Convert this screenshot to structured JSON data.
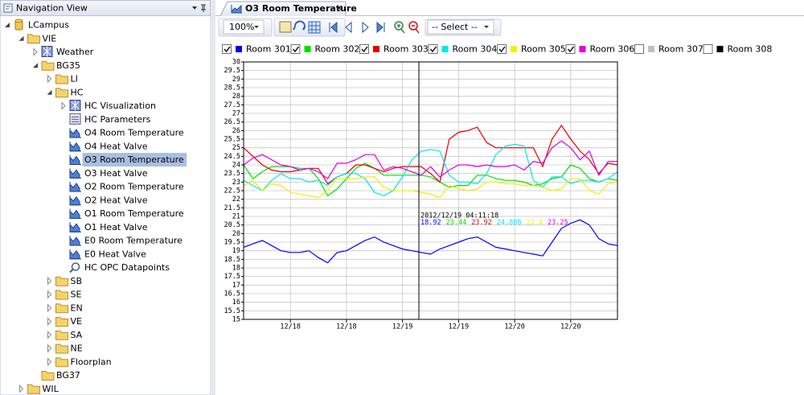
{
  "nav": {
    "title": "Navigation View",
    "nodes": [
      {
        "label": "LCampus",
        "depth": 0,
        "expander": "expanded",
        "icon": "database"
      },
      {
        "label": "VIE",
        "depth": 1,
        "expander": "expanded",
        "icon": "folder"
      },
      {
        "label": "Weather",
        "depth": 2,
        "expander": "collapsed",
        "icon": "visualization"
      },
      {
        "label": "BG35",
        "depth": 2,
        "expander": "expanded",
        "icon": "folder"
      },
      {
        "label": "LI",
        "depth": 3,
        "expander": "collapsed",
        "icon": "folder"
      },
      {
        "label": "HC",
        "depth": 3,
        "expander": "expanded",
        "icon": "folder"
      },
      {
        "label": "HC Visualization",
        "depth": 4,
        "expander": "collapsed",
        "icon": "visualization"
      },
      {
        "label": "HC Parameters",
        "depth": 4,
        "expander": "none",
        "icon": "parameters"
      },
      {
        "label": "O4 Room Temperature",
        "depth": 4,
        "expander": "none",
        "icon": "trend"
      },
      {
        "label": "O4 Heat Valve",
        "depth": 4,
        "expander": "none",
        "icon": "trend"
      },
      {
        "label": "O3 Room Temperature",
        "depth": 4,
        "expander": "none",
        "icon": "trend",
        "selected": true
      },
      {
        "label": "O3 Heat Valve",
        "depth": 4,
        "expander": "none",
        "icon": "trend"
      },
      {
        "label": "O2 Room Temperature",
        "depth": 4,
        "expander": "none",
        "icon": "trend"
      },
      {
        "label": "O2 Heat Valve",
        "depth": 4,
        "expander": "none",
        "icon": "trend"
      },
      {
        "label": "O1 Room Temperature",
        "depth": 4,
        "expander": "none",
        "icon": "trend"
      },
      {
        "label": "O1 Heat Valve",
        "depth": 4,
        "expander": "none",
        "icon": "trend"
      },
      {
        "label": "E0 Room Temperature",
        "depth": 4,
        "expander": "none",
        "icon": "trend"
      },
      {
        "label": "E0 Heat Valve",
        "depth": 4,
        "expander": "none",
        "icon": "trend"
      },
      {
        "label": "HC OPC Datapoints",
        "depth": 4,
        "expander": "none",
        "icon": "search"
      },
      {
        "label": "SB",
        "depth": 3,
        "expander": "collapsed",
        "icon": "folder"
      },
      {
        "label": "SE",
        "depth": 3,
        "expander": "collapsed",
        "icon": "folder"
      },
      {
        "label": "EN",
        "depth": 3,
        "expander": "collapsed",
        "icon": "folder"
      },
      {
        "label": "VE",
        "depth": 3,
        "expander": "collapsed",
        "icon": "folder"
      },
      {
        "label": "SA",
        "depth": 3,
        "expander": "collapsed",
        "icon": "folder"
      },
      {
        "label": "NE",
        "depth": 3,
        "expander": "collapsed",
        "icon": "folder"
      },
      {
        "label": "Floorplan",
        "depth": 3,
        "expander": "collapsed",
        "icon": "folder"
      },
      {
        "label": "BG37",
        "depth": 2,
        "expander": "none",
        "icon": "folder"
      },
      {
        "label": "WIL",
        "depth": 1,
        "expander": "collapsed",
        "icon": "folder"
      }
    ]
  },
  "tab": {
    "title": "O3 Room Temperature"
  },
  "toolbar": {
    "zoom": "100%",
    "select": "-- Select --"
  },
  "chart_data": {
    "type": "line",
    "categories": [
      null,
      null,
      null,
      null,
      null,
      "12/18",
      null,
      null,
      null,
      null,
      null,
      "12/18",
      null,
      null,
      null,
      null,
      null,
      "12/19",
      null,
      null,
      null,
      null,
      null,
      "12/19",
      null,
      null,
      null,
      null,
      null,
      "12/20",
      null,
      null,
      null,
      null,
      null,
      "12/20",
      null,
      null,
      null,
      null,
      null
    ],
    "series": [
      {
        "name": "Room 301",
        "color": "#0000ff",
        "checked": true,
        "values": [
          19.2,
          19.4,
          19.6,
          19.3,
          19.0,
          18.9,
          18.9,
          19.0,
          18.6,
          18.3,
          18.9,
          19.0,
          19.3,
          19.6,
          19.8,
          19.5,
          19.3,
          19.1,
          19.0,
          18.9,
          18.8,
          19.1,
          19.3,
          19.5,
          19.7,
          19.8,
          19.5,
          19.2,
          19.1,
          19.0,
          18.9,
          18.8,
          18.7,
          19.5,
          20.3,
          20.6,
          20.8,
          20.5,
          19.7,
          19.4,
          19.3
        ]
      },
      {
        "name": "Room 302",
        "color": "#00e000",
        "checked": true,
        "values": [
          24.0,
          23.2,
          23.6,
          23.9,
          23.9,
          23.9,
          23.8,
          23.8,
          23.2,
          22.2,
          22.6,
          23.2,
          23.8,
          24.1,
          23.8,
          23.4,
          23.4,
          23.4,
          23.4,
          23.4,
          23.3,
          23.0,
          22.7,
          22.8,
          22.8,
          23.4,
          23.4,
          23.2,
          23.1,
          23.1,
          23.0,
          22.8,
          22.9,
          23.2,
          23.3,
          24.0,
          23.8,
          23.2,
          23.0,
          23.2,
          23.1
        ]
      },
      {
        "name": "Room 303",
        "color": "#e00000",
        "checked": true,
        "values": [
          25.0,
          24.5,
          24.0,
          23.7,
          23.6,
          23.6,
          23.7,
          23.8,
          23.8,
          22.9,
          23.3,
          23.5,
          24.0,
          24.0,
          23.8,
          23.6,
          23.8,
          23.9,
          23.9,
          23.9,
          23.5,
          23.0,
          25.5,
          25.9,
          26.0,
          26.2,
          25.3,
          25.0,
          25.0,
          25.0,
          25.0,
          25.0,
          23.9,
          25.5,
          26.3,
          25.5,
          24.8,
          24.3,
          23.5,
          24.1,
          24.0
        ]
      },
      {
        "name": "Room 304",
        "color": "#00e5ee",
        "checked": true,
        "values": [
          23.1,
          22.8,
          22.5,
          23.1,
          23.5,
          23.2,
          23.2,
          23.0,
          23.1,
          22.8,
          23.3,
          23.5,
          23.5,
          23.2,
          22.4,
          22.2,
          22.5,
          23.3,
          24.3,
          24.8,
          24.9,
          24.8,
          23.4,
          23.0,
          23.0,
          22.9,
          23.5,
          24.6,
          25.1,
          25.2,
          25.1,
          23.1,
          22.7,
          23.3,
          23.3,
          22.9,
          23.1,
          23.1,
          23.0,
          23.2,
          23.6
        ]
      },
      {
        "name": "Room 305",
        "color": "#f0f000",
        "checked": true,
        "values": [
          22.8,
          23.1,
          22.5,
          22.9,
          22.8,
          22.4,
          22.3,
          22.2,
          22.1,
          22.5,
          23.2,
          23.2,
          23.2,
          23.3,
          23.3,
          22.7,
          22.5,
          22.5,
          22.5,
          22.4,
          22.3,
          22.1,
          22.8,
          22.6,
          22.5,
          22.6,
          23.0,
          23.0,
          22.9,
          22.9,
          22.8,
          22.8,
          22.7,
          22.5,
          22.6,
          23.2,
          23.2,
          22.5,
          22.3,
          22.9,
          23.0
        ]
      },
      {
        "name": "Room 306",
        "color": "#e000e0",
        "checked": true,
        "values": [
          24.0,
          24.4,
          24.6,
          24.3,
          24.0,
          23.9,
          23.7,
          23.8,
          23.6,
          23.2,
          24.1,
          24.1,
          24.3,
          24.6,
          24.6,
          23.7,
          23.9,
          23.8,
          23.6,
          23.4,
          23.9,
          23.3,
          23.7,
          24.0,
          24.0,
          23.9,
          24.0,
          23.9,
          23.9,
          24.0,
          23.7,
          24.2,
          24.1,
          25.0,
          25.4,
          25.0,
          24.3,
          24.8,
          23.4,
          24.2,
          24.2
        ]
      },
      {
        "name": "Room 307",
        "color": "#c0c0c0",
        "checked": false,
        "values": [
          null,
          null,
          null,
          null,
          null,
          null,
          null,
          null,
          null,
          null,
          null,
          null,
          null,
          null,
          null,
          null,
          null,
          null,
          null,
          null,
          null,
          null,
          null,
          null,
          null,
          null,
          null,
          null,
          null,
          null,
          null,
          null,
          null,
          null,
          null,
          null,
          null,
          null,
          null,
          null,
          null
        ]
      },
      {
        "name": "Room 308",
        "color": "#000000",
        "checked": false,
        "values": [
          null,
          null,
          null,
          null,
          null,
          null,
          null,
          null,
          null,
          null,
          null,
          null,
          null,
          null,
          null,
          null,
          null,
          null,
          null,
          null,
          null,
          null,
          null,
          null,
          null,
          null,
          null,
          null,
          null,
          null,
          null,
          null,
          null,
          null,
          null,
          null,
          null,
          null,
          null,
          null,
          null
        ]
      }
    ],
    "ylim": [
      15,
      30
    ],
    "yticks": [
      30,
      29.5,
      29,
      28.5,
      28,
      27.5,
      27,
      26.5,
      26,
      25.5,
      25,
      24.5,
      24,
      23.5,
      23,
      22.5,
      22,
      21.5,
      21,
      20.5,
      20,
      19.5,
      19,
      18.5,
      18,
      17.5,
      17,
      16.5,
      16,
      15.5,
      15
    ],
    "grid": true,
    "cursor": {
      "label": "2012/12/19 04:11:18",
      "values": [
        18.92,
        23.44,
        23.92,
        24.886,
        22.4,
        23.25
      ]
    }
  }
}
